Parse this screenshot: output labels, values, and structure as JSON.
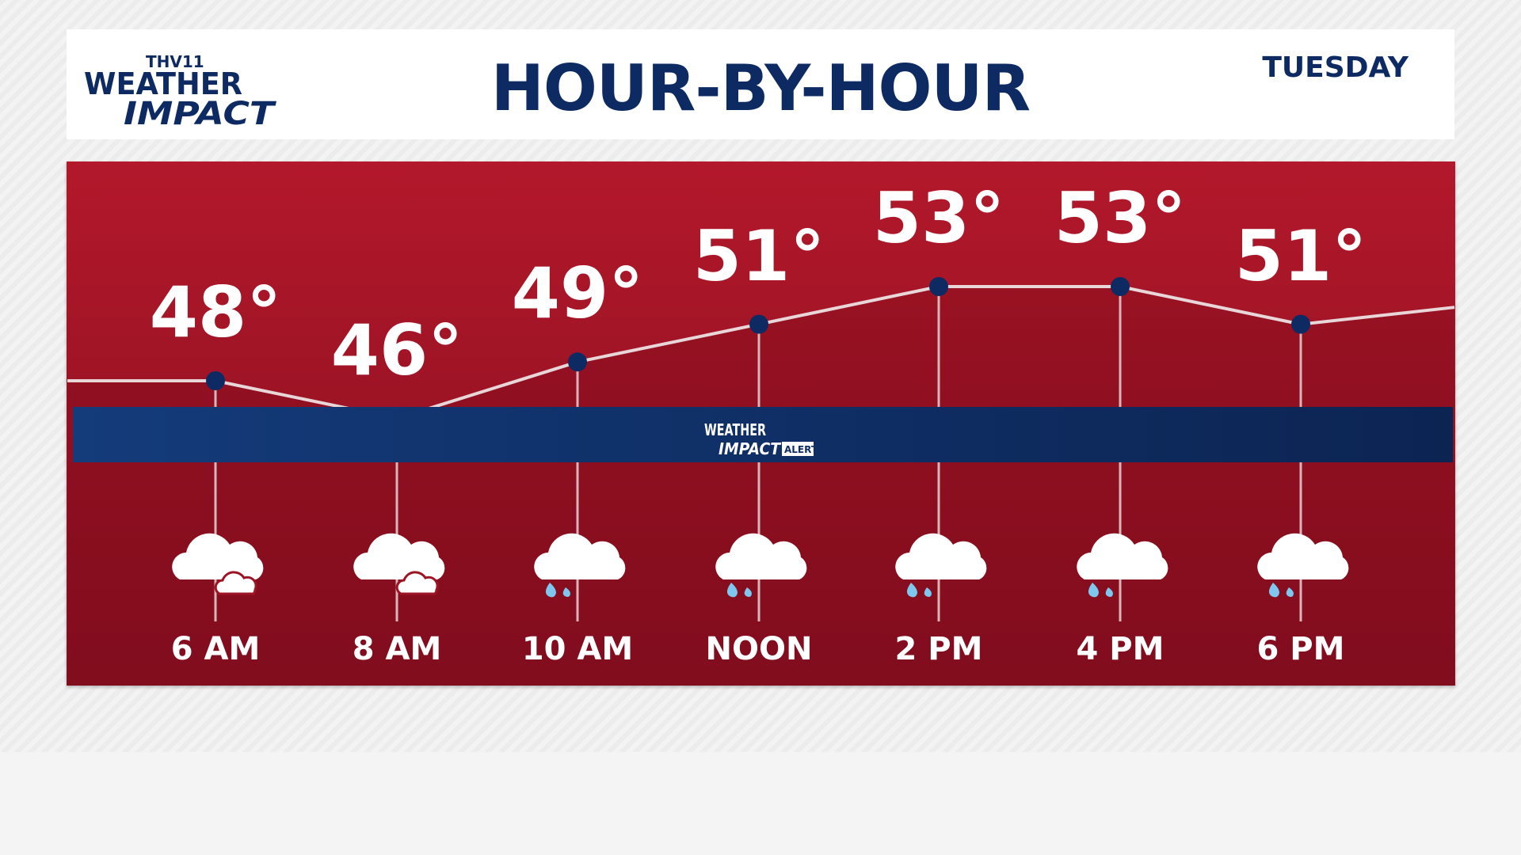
{
  "header": {
    "title": "HOUR-BY-HOUR",
    "day": "TUESDAY",
    "logo_text": "THV11 WEATHER IMPACT"
  },
  "band": {
    "logo_text": "WEATHER IMPACT ALERT",
    "color": "#0f2f66"
  },
  "colors": {
    "panel": "#a3172a",
    "accent": "#0d2a63",
    "line": "#e8d6d8",
    "drop": "#7ec8f0"
  },
  "chart_data": {
    "type": "line",
    "categories": [
      "6 AM",
      "8 AM",
      "10 AM",
      "NOON",
      "2 PM",
      "4 PM",
      "6 PM"
    ],
    "series": [
      {
        "values": [
          48,
          46,
          49,
          51,
          53,
          53,
          51
        ]
      }
    ],
    "labels": [
      "48°",
      "46°",
      "49°",
      "51°",
      "53°",
      "53°",
      "51°"
    ],
    "icons": [
      "cloudy",
      "cloudy",
      "rain",
      "rain",
      "rain",
      "rain",
      "rain"
    ]
  }
}
